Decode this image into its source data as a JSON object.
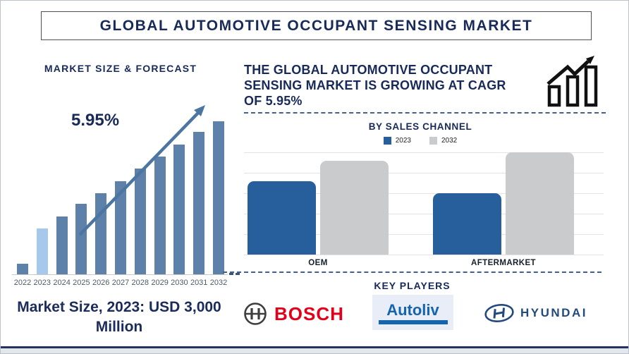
{
  "header": {
    "title": "GLOBAL AUTOMOTIVE OCCUPANT SENSING MARKET"
  },
  "forecast": {
    "title": "MARKET SIZE & FORECAST",
    "note": "Market Size, 2023: USD 3,000 Million"
  },
  "growth": {
    "heading_lines": [
      "THE GLOBAL AUTOMOTIVE OCCUPANT",
      "SENSING MARKET IS GROWING AT CAGR",
      "OF 5.95%"
    ]
  },
  "key_players": {
    "title": "KEY PLAYERS",
    "players": [
      {
        "label": "BOSCH",
        "brand_color": "#e2001a"
      },
      {
        "label": "Autoliv",
        "brand_color": "#1465ae"
      },
      {
        "label": "HYUNDAI",
        "brand_color": "#234a7c"
      }
    ]
  },
  "colors": {
    "navy_text": "#182a5a",
    "forecast_bar": "#5d81a8",
    "forecast_bar_highlight": "#a6c8ea",
    "trend_arrow": "#4b76a2",
    "channel_bar_2023": "#265f9c",
    "channel_bar_2032": "#c9cbcd",
    "divider_dash": "#44618c",
    "bottom_rule": "#233361"
  },
  "chart_data": [
    {
      "type": "bar",
      "title": "MARKET SIZE & FORECAST",
      "categories": [
        "2022",
        "2023",
        "2024",
        "2025",
        "2026",
        "2027",
        "2028",
        "2029",
        "2030",
        "2031",
        "2032"
      ],
      "values": [
        7,
        30,
        38,
        46,
        53,
        61,
        69,
        77,
        85,
        93,
        100
      ],
      "units": "relative index (no y-axis shown; 2032 = 100)",
      "highlight_category": "2023",
      "annotations": [
        "5.95%"
      ],
      "trend_arrow": true,
      "xlabel": "",
      "ylabel": "",
      "gridlines": false
    },
    {
      "type": "bar",
      "title": "BY SALES CHANNEL",
      "categories": [
        "OEM",
        "AFTERMARKET"
      ],
      "series": [
        {
          "name": "2023",
          "color": "#265f9c",
          "values": [
            3.6,
            3.0
          ]
        },
        {
          "name": "2032",
          "color": "#c9cbcd",
          "values": [
            4.6,
            5.0
          ]
        }
      ],
      "units": "relative gridline units (no y-axis labels shown)",
      "ylim": [
        0,
        5
      ],
      "gridlines": true,
      "legend_position": "top"
    }
  ]
}
